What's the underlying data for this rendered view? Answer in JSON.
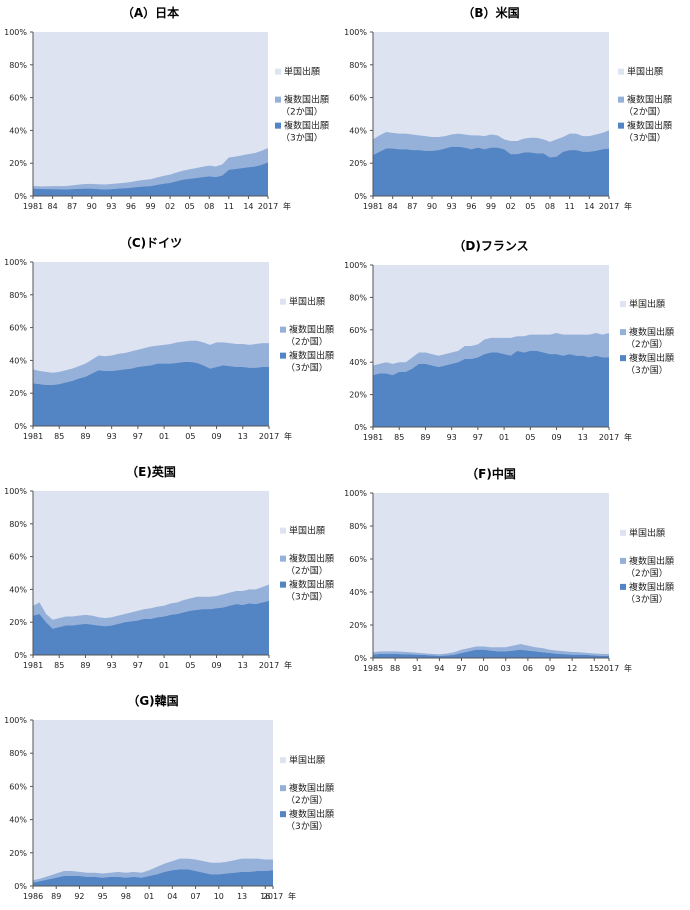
{
  "colors": {
    "single": "#dde3f1",
    "multi2": "#95b1da",
    "multi3": "#5384c4",
    "axis": "#555555"
  },
  "legend_labels": {
    "single": "単国出願",
    "multi2_line1": "複数国出願",
    "multi2_line2": "（2か国）",
    "multi3_line1": "複数国出願",
    "multi3_line2": "（3か国）"
  },
  "y_tick_labels": [
    "0%",
    "20%",
    "40%",
    "60%",
    "80%",
    "100%"
  ],
  "year_unit": "年",
  "chart_data": [
    {
      "type": "area",
      "title": "（A）日本",
      "ylim": [
        0,
        100
      ],
      "x": [
        1981,
        1982,
        1983,
        1984,
        1985,
        1986,
        1987,
        1988,
        1989,
        1990,
        1991,
        1992,
        1993,
        1994,
        1995,
        1996,
        1997,
        1998,
        1999,
        2000,
        2001,
        2002,
        2003,
        2004,
        2005,
        2006,
        2007,
        2008,
        2009,
        2010,
        2011,
        2012,
        2013,
        2014,
        2015,
        2016,
        2017
      ],
      "x_ticks": [
        "1981",
        "84",
        "87",
        "90",
        "93",
        "96",
        "99",
        "02",
        "05",
        "08",
        "11",
        "14",
        "2017"
      ],
      "series": [
        {
          "name": "複数国出願（3か国）",
          "values": [
            4.5,
            4.3,
            4.2,
            4.2,
            4.1,
            4.0,
            4.2,
            4.4,
            4.5,
            4.5,
            4.2,
            4.0,
            4.2,
            4.5,
            4.7,
            5.0,
            5.5,
            5.8,
            6.0,
            6.8,
            7.5,
            8.0,
            9.0,
            10.0,
            10.5,
            11.0,
            11.5,
            12.0,
            11.5,
            12.5,
            16.0,
            16.5,
            17.0,
            17.5,
            18.0,
            19.0,
            20.5
          ]
        },
        {
          "name": "複数国出願（2か国）",
          "values": [
            1.6,
            1.6,
            1.7,
            1.8,
            1.9,
            2.0,
            2.3,
            2.5,
            2.8,
            2.9,
            3.0,
            3.0,
            3.1,
            3.2,
            3.3,
            3.5,
            3.8,
            4.0,
            4.2,
            4.5,
            4.8,
            5.0,
            5.3,
            5.5,
            5.8,
            6.0,
            6.3,
            6.5,
            6.5,
            6.8,
            7.5,
            7.5,
            7.8,
            8.0,
            8.2,
            8.5,
            8.8
          ]
        }
      ]
    },
    {
      "type": "area",
      "title": "（B）米国",
      "ylim": [
        0,
        100
      ],
      "x": [
        1981,
        1982,
        1983,
        1984,
        1985,
        1986,
        1987,
        1988,
        1989,
        1990,
        1991,
        1992,
        1993,
        1994,
        1995,
        1996,
        1997,
        1998,
        1999,
        2000,
        2001,
        2002,
        2003,
        2004,
        2005,
        2006,
        2007,
        2008,
        2009,
        2010,
        2011,
        2012,
        2013,
        2014,
        2015,
        2016,
        2017
      ],
      "x_ticks": [
        "1981",
        "84",
        "87",
        "90",
        "93",
        "96",
        "99",
        "02",
        "05",
        "08",
        "11",
        "14",
        "2017"
      ],
      "series": [
        {
          "name": "複数国出願（3か国）",
          "values": [
            25,
            27,
            29,
            29,
            28.5,
            28.5,
            28,
            28,
            27.5,
            27.5,
            28,
            29,
            30,
            30,
            29.5,
            28.5,
            29.5,
            28.5,
            29.5,
            29.5,
            28.5,
            25.5,
            25.5,
            26.5,
            26.5,
            26,
            26,
            23.5,
            24,
            27,
            28,
            28,
            27,
            27,
            27.5,
            28.5,
            29
          ]
        },
        {
          "name": "複数国出願（2か国）",
          "values": [
            9.5,
            10,
            10,
            9.5,
            9.5,
            9.5,
            9.5,
            9,
            9,
            8.5,
            8,
            7.5,
            7.5,
            8,
            8,
            8.5,
            7.5,
            8,
            8,
            7.5,
            6,
            8,
            8,
            8.5,
            9,
            9.5,
            8.5,
            9.5,
            10.5,
            9,
            10,
            10,
            9.5,
            9.5,
            10,
            10,
            11
          ]
        }
      ]
    },
    {
      "type": "area",
      "title": "（C)ドイツ",
      "ylim": [
        0,
        100
      ],
      "x": [
        1981,
        1982,
        1983,
        1984,
        1985,
        1986,
        1987,
        1988,
        1989,
        1990,
        1991,
        1992,
        1993,
        1994,
        1995,
        1996,
        1997,
        1998,
        1999,
        2000,
        2001,
        2002,
        2003,
        2004,
        2005,
        2006,
        2007,
        2008,
        2009,
        2010,
        2011,
        2012,
        2013,
        2014,
        2015,
        2016,
        2017
      ],
      "x_ticks": [
        "1981",
        "85",
        "89",
        "93",
        "97",
        "01",
        "05",
        "09",
        "13",
        "2017"
      ],
      "series": [
        {
          "name": "複数国出願（3か国）",
          "values": [
            26,
            25.5,
            25,
            25,
            25.5,
            26.5,
            27.5,
            29,
            30,
            32,
            34,
            33.5,
            33.5,
            34,
            34.5,
            35,
            36,
            36.5,
            37,
            38,
            38,
            38,
            38.5,
            39,
            39,
            38.5,
            37,
            35,
            36,
            37,
            36.5,
            36,
            36,
            35.5,
            35.5,
            36,
            36
          ]
        },
        {
          "name": "複数国出願（2か国）",
          "values": [
            8.5,
            8,
            8,
            7.5,
            7.5,
            7.5,
            7.5,
            7.5,
            8,
            8.5,
            9,
            9,
            9.5,
            10,
            10,
            10.5,
            10.5,
            11,
            11.5,
            11,
            11.5,
            12,
            12.5,
            12.5,
            13,
            13.5,
            14,
            14.5,
            15,
            14,
            14,
            14,
            14,
            14,
            14.5,
            14.5,
            14.5
          ]
        }
      ]
    },
    {
      "type": "area",
      "title": "（D)フランス",
      "ylim": [
        0,
        100
      ],
      "x": [
        1981,
        1982,
        1983,
        1984,
        1985,
        1986,
        1987,
        1988,
        1989,
        1990,
        1991,
        1992,
        1993,
        1994,
        1995,
        1996,
        1997,
        1998,
        1999,
        2000,
        2001,
        2002,
        2003,
        2004,
        2005,
        2006,
        2007,
        2008,
        2009,
        2010,
        2011,
        2012,
        2013,
        2014,
        2015,
        2016,
        2017
      ],
      "x_ticks": [
        "1981",
        "85",
        "89",
        "93",
        "97",
        "01",
        "05",
        "09",
        "13",
        "2017"
      ],
      "series": [
        {
          "name": "複数国出願（3か国）",
          "values": [
            32,
            33,
            33,
            32,
            34,
            34,
            36,
            39,
            39,
            38,
            37,
            38,
            39,
            40,
            42,
            42,
            43,
            45,
            46,
            46,
            45,
            44,
            47,
            46,
            47,
            47,
            46,
            45,
            45,
            44,
            45,
            44,
            44,
            43,
            44,
            43,
            43
          ]
        },
        {
          "name": "複数国出願（2か国）",
          "values": [
            6,
            6,
            7,
            7,
            6,
            6,
            7,
            7,
            7,
            7,
            7,
            7,
            7,
            7,
            8,
            8,
            8,
            9,
            9,
            9,
            10,
            11,
            9,
            10,
            10,
            10,
            11,
            12,
            13,
            13,
            12,
            13,
            13,
            14,
            14,
            14,
            15
          ]
        }
      ]
    },
    {
      "type": "area",
      "title": "（E)英国",
      "ylim": [
        0,
        100
      ],
      "x": [
        1981,
        1982,
        1983,
        1984,
        1985,
        1986,
        1987,
        1988,
        1989,
        1990,
        1991,
        1992,
        1993,
        1994,
        1995,
        1996,
        1997,
        1998,
        1999,
        2000,
        2001,
        2002,
        2003,
        2004,
        2005,
        2006,
        2007,
        2008,
        2009,
        2010,
        2011,
        2012,
        2013,
        2014,
        2015,
        2016,
        2017
      ],
      "x_ticks": [
        "1981",
        "85",
        "89",
        "93",
        "97",
        "01",
        "05",
        "09",
        "13",
        "2017"
      ],
      "series": [
        {
          "name": "複数国出願（3か国）",
          "values": [
            24,
            25,
            20,
            16,
            17,
            18,
            18,
            18.5,
            19,
            18.5,
            18,
            17.5,
            18,
            19,
            20,
            20.5,
            21,
            22,
            22,
            23,
            23.5,
            24.5,
            25,
            26,
            27,
            27.5,
            28,
            28,
            28.5,
            29,
            30,
            31,
            30.5,
            31.5,
            31,
            32,
            33
          ]
        },
        {
          "name": "複数国出願（2か国）",
          "values": [
            6,
            7,
            5,
            5.5,
            5.5,
            5.5,
            5.5,
            5.5,
            5.5,
            5.5,
            5,
            5,
            5,
            5,
            5,
            5.5,
            6,
            6,
            6.5,
            6.5,
            6.5,
            7,
            7,
            7.5,
            7.5,
            8,
            7.5,
            7.5,
            7.5,
            8,
            8,
            8,
            8.5,
            8.5,
            9,
            9.5,
            10
          ]
        }
      ]
    },
    {
      "type": "area",
      "title": "（F)中国",
      "ylim": [
        0,
        100
      ],
      "x": [
        1985,
        1986,
        1987,
        1988,
        1989,
        1990,
        1991,
        1992,
        1993,
        1994,
        1995,
        1996,
        1997,
        1998,
        1999,
        2000,
        2001,
        2002,
        2003,
        2004,
        2005,
        2006,
        2007,
        2008,
        2009,
        2010,
        2011,
        2012,
        2013,
        2014,
        2015,
        2016,
        2017
      ],
      "x_ticks": [
        "1985",
        "88",
        "91",
        "94",
        "97",
        "00",
        "03",
        "06",
        "09",
        "12",
        "15",
        "2017"
      ],
      "series": [
        {
          "name": "複数国出願（3か国）",
          "values": [
            2,
            2.5,
            2.5,
            2.5,
            2.3,
            2.2,
            2,
            1.8,
            1.5,
            1.3,
            1.5,
            2,
            3,
            4,
            5,
            5,
            4.5,
            4,
            4,
            4.5,
            5,
            4.5,
            4,
            3.5,
            3,
            2.5,
            2.3,
            2,
            2,
            1.8,
            1.5,
            1.3,
            1.2
          ]
        },
        {
          "name": "複数国出願（2か国）",
          "values": [
            1.5,
            1.5,
            1.5,
            1.5,
            1.5,
            1.3,
            1.2,
            1,
            1,
            1,
            1.2,
            1.5,
            2,
            2,
            2,
            2,
            2,
            2.5,
            2.5,
            3,
            3.5,
            3,
            2.5,
            2.5,
            2,
            2,
            1.8,
            1.6,
            1.5,
            1.3,
            1.2,
            1.2,
            1.2
          ]
        }
      ]
    },
    {
      "type": "area",
      "title": "（G)韓国",
      "ylim": [
        0,
        100
      ],
      "x": [
        1986,
        1987,
        1988,
        1989,
        1990,
        1991,
        1992,
        1993,
        1994,
        1995,
        1996,
        1997,
        1998,
        1999,
        2000,
        2001,
        2002,
        2003,
        2004,
        2005,
        2006,
        2007,
        2008,
        2009,
        2010,
        2011,
        2012,
        2013,
        2014,
        2015,
        2016,
        2017
      ],
      "x_ticks": [
        "1986",
        "89",
        "92",
        "95",
        "98",
        "01",
        "04",
        "07",
        "10",
        "13",
        "16",
        "2017"
      ],
      "series": [
        {
          "name": "複数国出願（3か国）",
          "values": [
            2,
            3,
            4,
            5,
            6,
            6,
            6,
            5.5,
            5.5,
            5,
            5.5,
            5.5,
            5,
            5.5,
            5,
            6,
            7,
            8.5,
            9.5,
            10,
            10,
            9,
            8,
            7,
            7,
            7.5,
            8,
            8.5,
            8.5,
            9,
            9,
            9.5
          ]
        },
        {
          "name": "複数国出願（2か国）",
          "values": [
            1.5,
            1.5,
            2,
            2.5,
            3,
            3,
            2.5,
            2.5,
            2.5,
            2.5,
            2.5,
            3,
            3,
            3,
            3,
            3.5,
            4.5,
            5,
            5.5,
            6.5,
            6.5,
            7,
            7,
            7,
            7,
            7,
            7.5,
            8,
            8,
            7.5,
            7,
            6.5
          ]
        }
      ]
    }
  ]
}
